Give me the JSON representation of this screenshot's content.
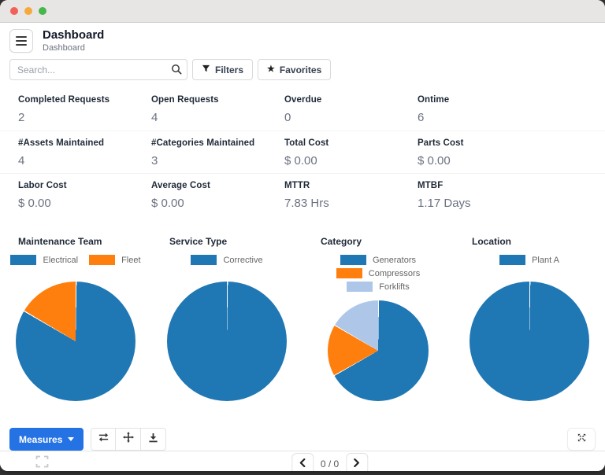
{
  "window": {
    "traffic_lights": [
      "#f2605a",
      "#f6a83c",
      "#46b749"
    ]
  },
  "header": {
    "title": "Dashboard",
    "breadcrumb": "Dashboard"
  },
  "search": {
    "placeholder": "Search...",
    "filters_label": "Filters",
    "favorites_label": "Favorites",
    "star_glyph": "★"
  },
  "theme": {
    "primary": "#2472e4",
    "pie_blue": "#1f77b4",
    "pie_orange": "#ff7f0e",
    "pie_light_blue": "#aec7e8"
  },
  "kpis": {
    "rows": [
      [
        {
          "label": "Completed Requests",
          "value": "2"
        },
        {
          "label": "Open Requests",
          "value": "4"
        },
        {
          "label": "Overdue",
          "value": "0"
        },
        {
          "label": "Ontime",
          "value": "6"
        }
      ],
      [
        {
          "label": "#Assets Maintained",
          "value": "4"
        },
        {
          "label": "#Categories Maintained",
          "value": "3"
        },
        {
          "label": "Total Cost",
          "value": "$ 0.00"
        },
        {
          "label": "Parts Cost",
          "value": "$ 0.00"
        }
      ],
      [
        {
          "label": "Labor Cost",
          "value": "$ 0.00"
        },
        {
          "label": "Average Cost",
          "value": "$ 0.00"
        },
        {
          "label": "MTTR",
          "value": "7.83 Hrs"
        },
        {
          "label": "MTBF",
          "value": "1.17 Days"
        }
      ]
    ]
  },
  "chart_data": [
    {
      "type": "pie",
      "title": "Maintenance Team",
      "labels": [
        "Electrical",
        "Fleet"
      ],
      "values": [
        5,
        1
      ],
      "colors": [
        "#1f77b4",
        "#ff7f0e"
      ],
      "legend_position": "top"
    },
    {
      "type": "pie",
      "title": "Service Type",
      "labels": [
        "Corrective"
      ],
      "values": [
        6
      ],
      "colors": [
        "#1f77b4"
      ],
      "legend_position": "top"
    },
    {
      "type": "pie",
      "title": "Category",
      "labels": [
        "Generators",
        "Compressors",
        "Forklifts"
      ],
      "values": [
        4,
        1,
        1
      ],
      "colors": [
        "#1f77b4",
        "#ff7f0e",
        "#aec7e8"
      ],
      "legend_position": "top"
    },
    {
      "type": "pie",
      "title": "Location",
      "labels": [
        "Plant A"
      ],
      "values": [
        6
      ],
      "colors": [
        "#1f77b4"
      ],
      "legend_position": "top"
    }
  ],
  "toolbar": {
    "measures_label": "Measures",
    "icon_buttons": [
      "flip-axes-icon",
      "expand-all-icon",
      "download-icon"
    ],
    "expand_button_icon": "arrows-out-icon"
  },
  "pager": {
    "value": "0 / 0"
  }
}
